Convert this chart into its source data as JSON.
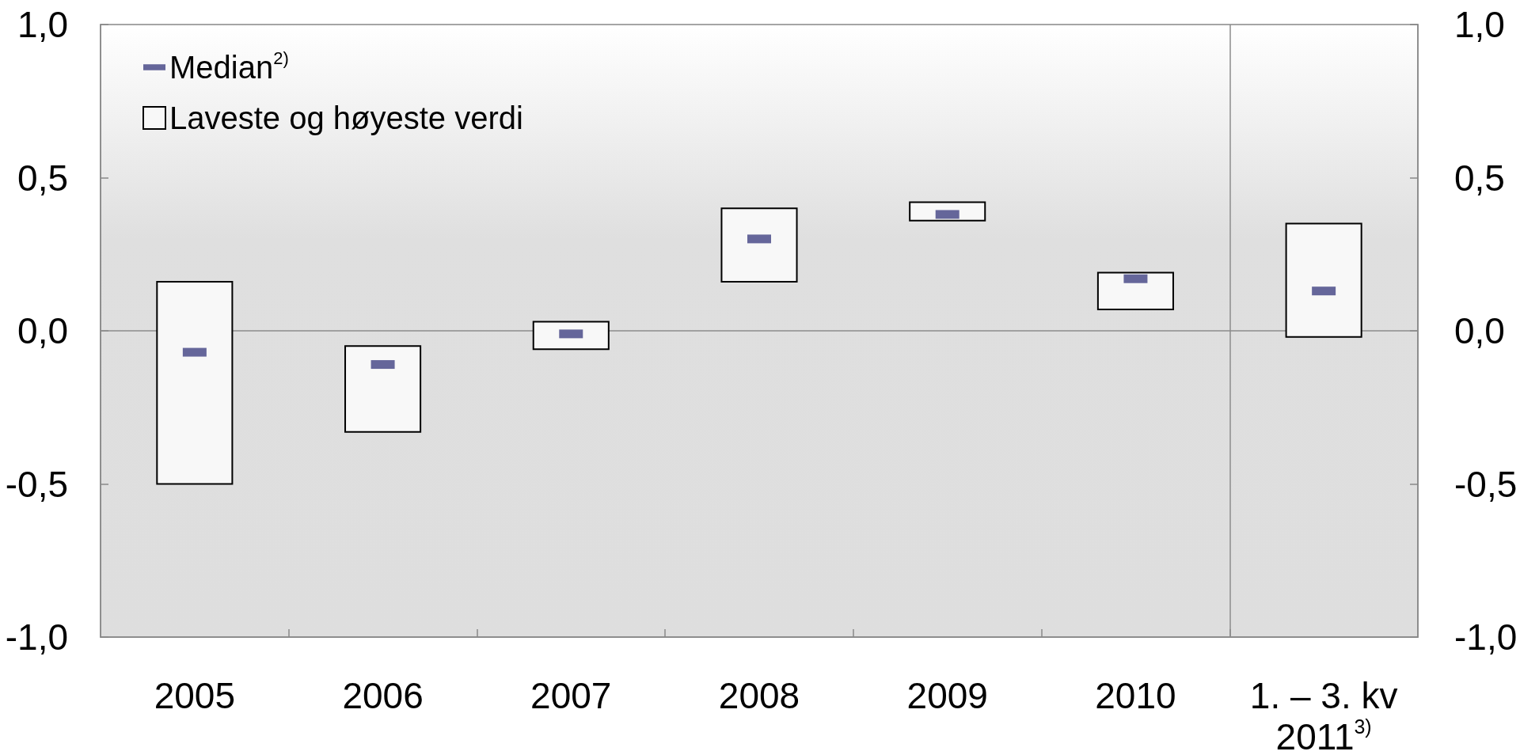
{
  "chart_data": {
    "type": "bar",
    "categories": [
      "2005",
      "2006",
      "2007",
      "2008",
      "2009",
      "2010",
      "1. – 3. kv 2011$^{3)}$"
    ],
    "series": [
      {
        "name": "Median$^{2)}$",
        "type": "scatter",
        "color": "#65669a",
        "values": [
          -0.07,
          -0.11,
          -0.01,
          0.3,
          0.38,
          0.17,
          0.13
        ]
      },
      {
        "name": "Laveste og høyeste verdi",
        "color": "#f8f8f8",
        "base": [
          -0.5,
          -0.33,
          -0.06,
          0.16,
          0.36,
          0.07,
          -0.02
        ],
        "values": [
          0.66,
          0.28,
          0.09,
          0.24,
          0.06,
          0.12,
          0.37
        ]
      }
    ],
    "ylim": [
      -1,
      1
    ],
    "yticks": [
      {
        "value": -1,
        "label": "-1,0"
      },
      {
        "value": -0.5,
        "label": "-0,5"
      },
      {
        "value": 0,
        "label": "0,0"
      },
      {
        "value": 0.5,
        "label": "0,5"
      },
      {
        "value": 1,
        "label": "1,0"
      }
    ],
    "y2lim": [
      -1,
      1
    ],
    "y2ticks": [
      {
        "value": -1,
        "label": "-1,0"
      },
      {
        "value": -0.5,
        "label": "-0,5"
      },
      {
        "value": 0,
        "label": "0,0"
      },
      {
        "value": 0.5,
        "label": "0,5"
      },
      {
        "value": 1,
        "label": "1,0"
      }
    ],
    "ref_lines": [
      {
        "axis": "y",
        "value": 0,
        "color": "#8c8c8c"
      }
    ],
    "legend": "top left"
  }
}
